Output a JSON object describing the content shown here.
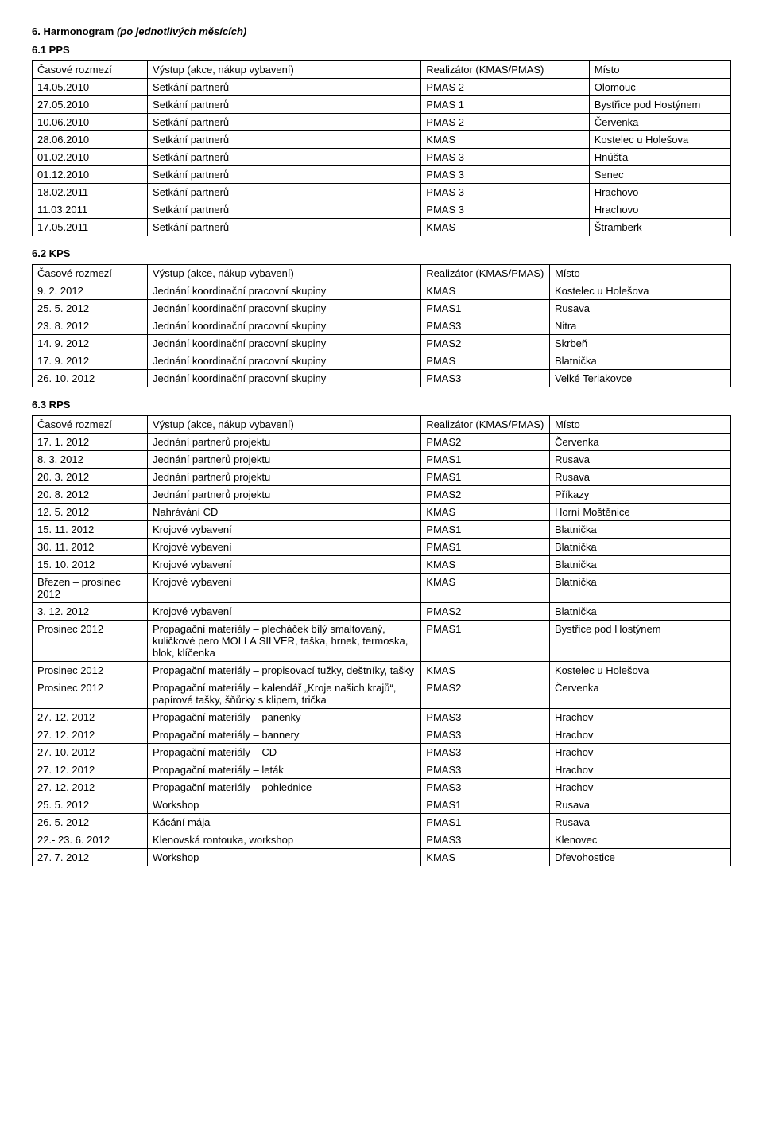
{
  "heading6": {
    "num": "6.",
    "title": "Harmonogram",
    "suffix": "(po jednotlivých měsících)"
  },
  "sec1": {
    "title": "6.1 PPS",
    "headers": [
      "Časové rozmezí",
      "Výstup (akce, nákup vybavení)",
      "Realizátor (KMAS/PMAS)",
      "Místo"
    ],
    "rows": [
      [
        "14.05.2010",
        "Setkání partnerů",
        "PMAS 2",
        "Olomouc"
      ],
      [
        "27.05.2010",
        "Setkání partnerů",
        "PMAS 1",
        "Bystřice pod Hostýnem"
      ],
      [
        "10.06.2010",
        "Setkání partnerů",
        "PMAS 2",
        "Červenka"
      ],
      [
        "28.06.2010",
        "Setkání partnerů",
        "KMAS",
        "Kostelec u Holešova"
      ],
      [
        "01.02.2010",
        "Setkání partnerů",
        "PMAS 3",
        "Hnúšťa"
      ],
      [
        "01.12.2010",
        "Setkání partnerů",
        "PMAS 3",
        "Senec"
      ],
      [
        "18.02.2011",
        "Setkání partnerů",
        "PMAS 3",
        "Hrachovo"
      ],
      [
        "11.03.2011",
        "Setkání partnerů",
        "PMAS 3",
        "Hrachovo"
      ],
      [
        "17.05.2011",
        "Setkání partnerů",
        "KMAS",
        "Štramberk"
      ]
    ]
  },
  "sec2": {
    "title": "6.2 KPS",
    "headers": [
      "Časové rozmezí",
      "Výstup (akce, nákup vybavení)",
      "Realizátor (KMAS/PMAS)",
      "Místo"
    ],
    "rows": [
      [
        "9. 2. 2012",
        "Jednání koordinační pracovní skupiny",
        "KMAS",
        "Kostelec u Holešova"
      ],
      [
        "25. 5. 2012",
        "Jednání koordinační pracovní skupiny",
        "PMAS1",
        "Rusava"
      ],
      [
        "23. 8. 2012",
        "Jednání koordinační pracovní skupiny",
        "PMAS3",
        "Nitra"
      ],
      [
        "14. 9. 2012",
        "Jednání koordinační pracovní skupiny",
        "PMAS2",
        "Skrbeň"
      ],
      [
        "17. 9. 2012",
        "Jednání koordinační pracovní skupiny",
        "PMAS",
        "Blatnička"
      ],
      [
        "26. 10. 2012",
        "Jednání koordinační pracovní skupiny",
        "PMAS3",
        "Velké Teriakovce"
      ]
    ]
  },
  "sec3": {
    "title": "6.3 RPS",
    "headers": [
      "Časové rozmezí",
      "Výstup (akce, nákup vybavení)",
      "Realizátor (KMAS/PMAS)",
      "Místo"
    ],
    "rows": [
      [
        "17. 1. 2012",
        "Jednání partnerů projektu",
        "PMAS2",
        "Červenka"
      ],
      [
        "8. 3. 2012",
        "Jednání partnerů projektu",
        "PMAS1",
        "Rusava"
      ],
      [
        "20. 3. 2012",
        "Jednání partnerů projektu",
        "PMAS1",
        "Rusava"
      ],
      [
        "20. 8. 2012",
        "Jednání partnerů projektu",
        "PMAS2",
        "Příkazy"
      ],
      [
        "12. 5. 2012",
        "Nahrávání CD",
        "KMAS",
        "Horní Moštěnice"
      ],
      [
        "15. 11. 2012",
        "Krojové vybavení",
        "PMAS1",
        "Blatnička"
      ],
      [
        "30. 11. 2012",
        "Krojové vybavení",
        "PMAS1",
        "Blatnička"
      ],
      [
        "15. 10. 2012",
        "Krojové vybavení",
        "KMAS",
        "Blatnička"
      ],
      [
        "Březen – prosinec 2012",
        "Krojové vybavení",
        "KMAS",
        "Blatnička"
      ],
      [
        "3. 12. 2012",
        "Krojové vybavení",
        "PMAS2",
        "Blatnička"
      ],
      [
        "Prosinec 2012",
        "Propagační materiály – plecháček bílý smaltovaný, kuličkové pero MOLLA SILVER, taška, hrnek, termoska, blok, klíčenka",
        "PMAS1",
        "Bystřice pod Hostýnem"
      ],
      [
        "Prosinec 2012",
        "Propagační materiály – propisovací tužky, deštníky, tašky",
        "KMAS",
        "Kostelec u Holešova"
      ],
      [
        "Prosinec 2012",
        "Propagační materiály – kalendář „Kroje našich krajů“, papírové tašky, šňůrky s klipem, trička",
        "PMAS2",
        "Červenka"
      ],
      [
        "27. 12. 2012",
        "Propagační materiály – panenky",
        "PMAS3",
        "Hrachov"
      ],
      [
        "27. 12. 2012",
        "Propagační materiály – bannery",
        "PMAS3",
        "Hrachov"
      ],
      [
        "27. 10. 2012",
        "Propagační materiály – CD",
        "PMAS3",
        "Hrachov"
      ],
      [
        "27. 12. 2012",
        "Propagační materiály – leták",
        "PMAS3",
        "Hrachov"
      ],
      [
        "27. 12. 2012",
        "Propagační materiály – pohlednice",
        "PMAS3",
        "Hrachov"
      ],
      [
        "25. 5. 2012",
        "Workshop",
        "PMAS1",
        "Rusava"
      ],
      [
        "26. 5. 2012",
        "Kácání mája",
        "PMAS1",
        "Rusava"
      ],
      [
        "22.- 23. 6. 2012",
        "Klenovská rontouka, workshop",
        "PMAS3",
        "Klenovec"
      ],
      [
        "27. 7. 2012",
        "Workshop",
        "KMAS",
        "Dřevohostice"
      ]
    ]
  }
}
